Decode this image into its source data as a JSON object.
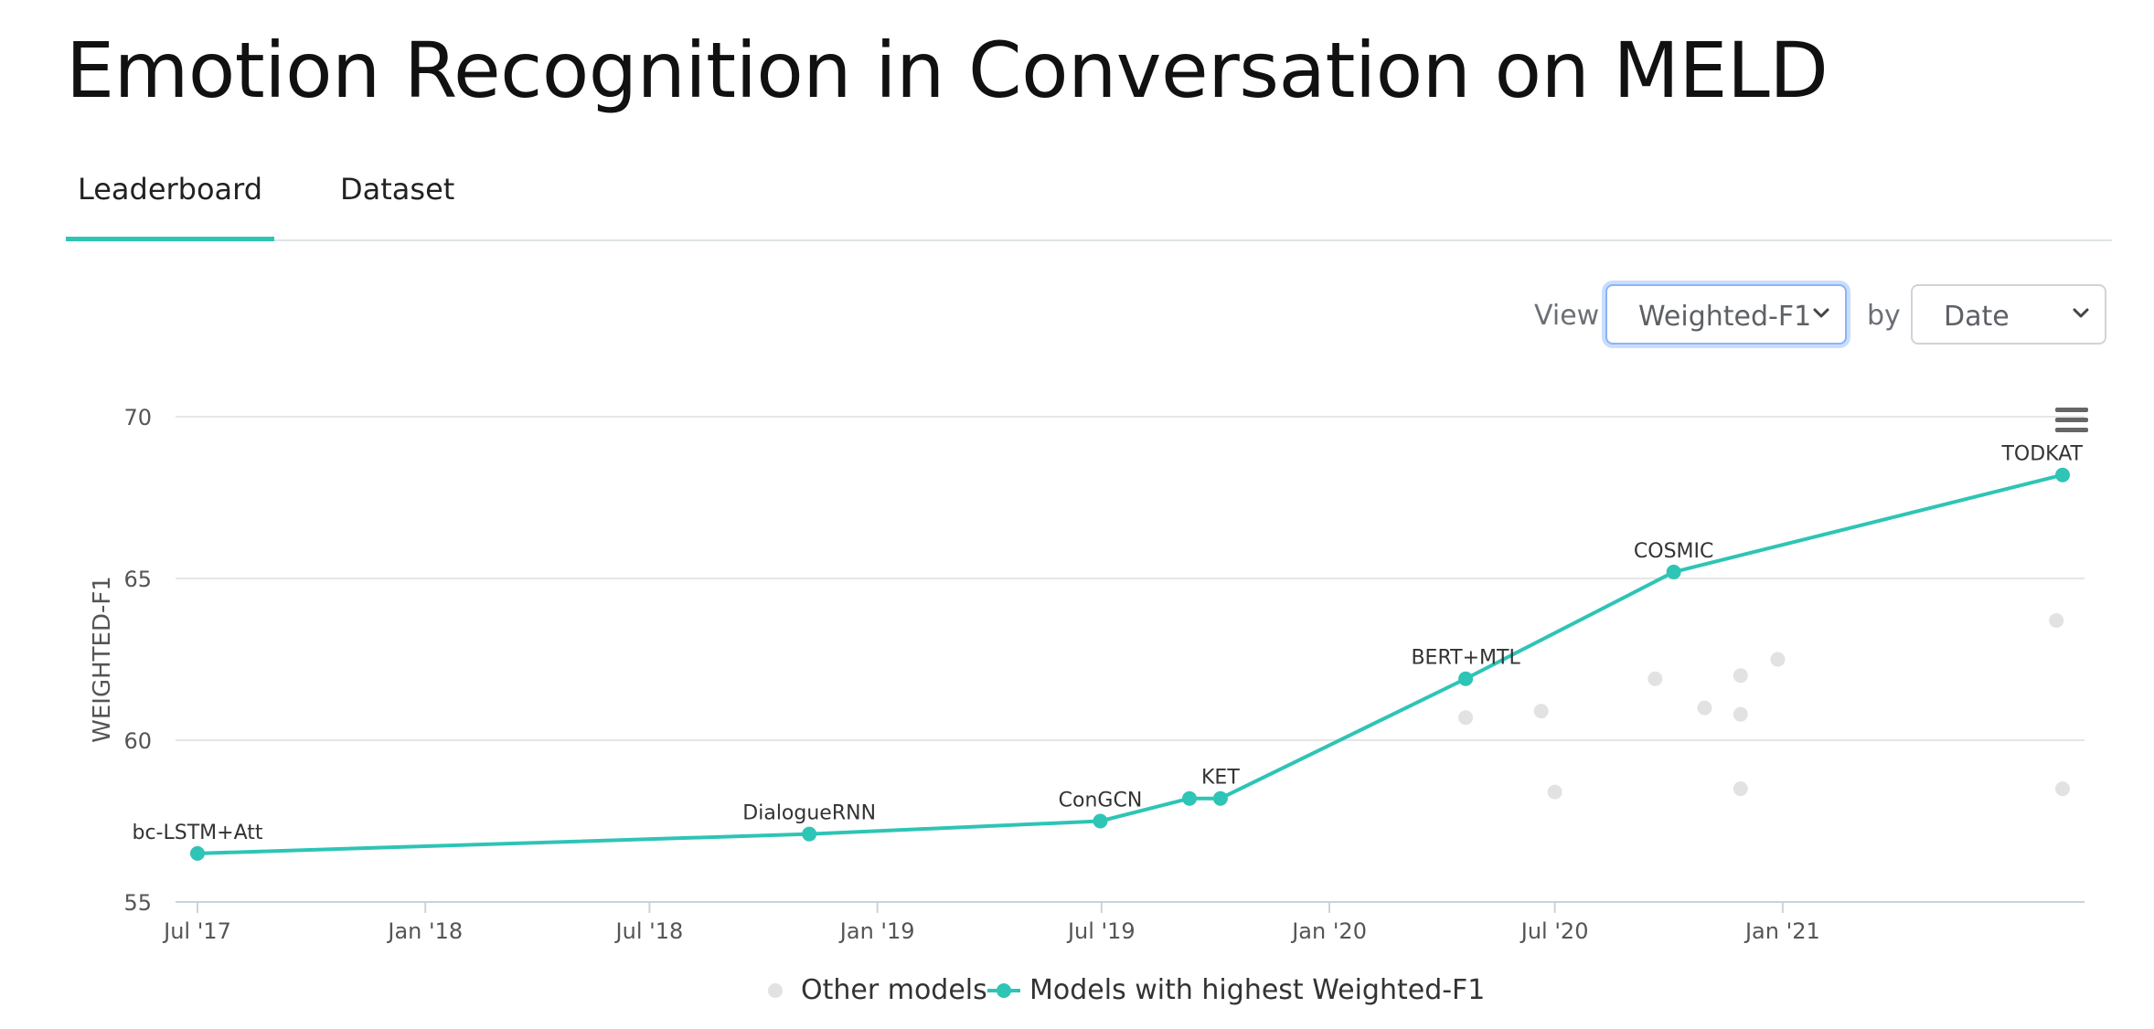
{
  "page": {
    "title": "Emotion Recognition in Conversation on MELD"
  },
  "tabs": [
    {
      "label": "Leaderboard",
      "active": true
    },
    {
      "label": "Dataset",
      "active": false
    }
  ],
  "controls": {
    "view_label": "View",
    "view_value": "Weighted-F1",
    "by_label": "by",
    "by_value": "Date"
  },
  "legend": {
    "other": "Other models",
    "best": "Models with highest Weighted-F1"
  },
  "colors": {
    "accent": "#2ec4b6",
    "other_points": "#e2e2e2",
    "grid": "#e6e6e6"
  },
  "menu_icon": "hamburger-menu-icon",
  "chart_data": {
    "type": "line",
    "title": "",
    "xlabel": "",
    "ylabel": "WEIGHTED-F1",
    "ylim": [
      55,
      70
    ],
    "yticks": [
      55,
      60,
      65,
      70
    ],
    "xlim": [
      "2017-07-01",
      "2021-08-15"
    ],
    "xticks": [
      {
        "date": "2017-07-01",
        "label": "Jul '17"
      },
      {
        "date": "2018-01-01",
        "label": "Jan '18"
      },
      {
        "date": "2018-07-01",
        "label": "Jul '18"
      },
      {
        "date": "2019-01-01",
        "label": "Jan '19"
      },
      {
        "date": "2019-07-01",
        "label": "Jul '19"
      },
      {
        "date": "2020-01-01",
        "label": "Jan '20"
      },
      {
        "date": "2020-07-01",
        "label": "Jul '20"
      },
      {
        "date": "2021-01-01",
        "label": "Jan '21"
      }
    ],
    "grid": true,
    "legend_position": "bottom",
    "series": [
      {
        "name": "Models with highest Weighted-F1",
        "points": [
          {
            "x": "2017-07-01",
            "y": 56.5,
            "label": "bc-LSTM+Att"
          },
          {
            "x": "2018-11-07",
            "y": 57.1,
            "label": "DialogueRNN"
          },
          {
            "x": "2019-06-30",
            "y": 57.5,
            "label": "ConGCN"
          },
          {
            "x": "2019-09-10",
            "y": 58.2,
            "label": ""
          },
          {
            "x": "2019-10-05",
            "y": 58.2,
            "label": "KET"
          },
          {
            "x": "2020-04-20",
            "y": 61.9,
            "label": "BERT+MTL"
          },
          {
            "x": "2020-10-05",
            "y": 65.2,
            "label": "COSMIC"
          },
          {
            "x": "2021-08-15",
            "y": 68.2,
            "label": "TODKAT"
          }
        ]
      },
      {
        "name": "Other models",
        "points": [
          {
            "x": "2020-04-20",
            "y": 60.7
          },
          {
            "x": "2020-06-20",
            "y": 60.9
          },
          {
            "x": "2020-07-01",
            "y": 58.4
          },
          {
            "x": "2020-09-20",
            "y": 61.9
          },
          {
            "x": "2020-10-30",
            "y": 61.0
          },
          {
            "x": "2020-11-28",
            "y": 62.0
          },
          {
            "x": "2020-11-28",
            "y": 60.8
          },
          {
            "x": "2020-11-28",
            "y": 58.5
          },
          {
            "x": "2020-12-28",
            "y": 62.5
          },
          {
            "x": "2021-08-10",
            "y": 63.7
          },
          {
            "x": "2021-08-15",
            "y": 58.5
          }
        ]
      }
    ]
  }
}
